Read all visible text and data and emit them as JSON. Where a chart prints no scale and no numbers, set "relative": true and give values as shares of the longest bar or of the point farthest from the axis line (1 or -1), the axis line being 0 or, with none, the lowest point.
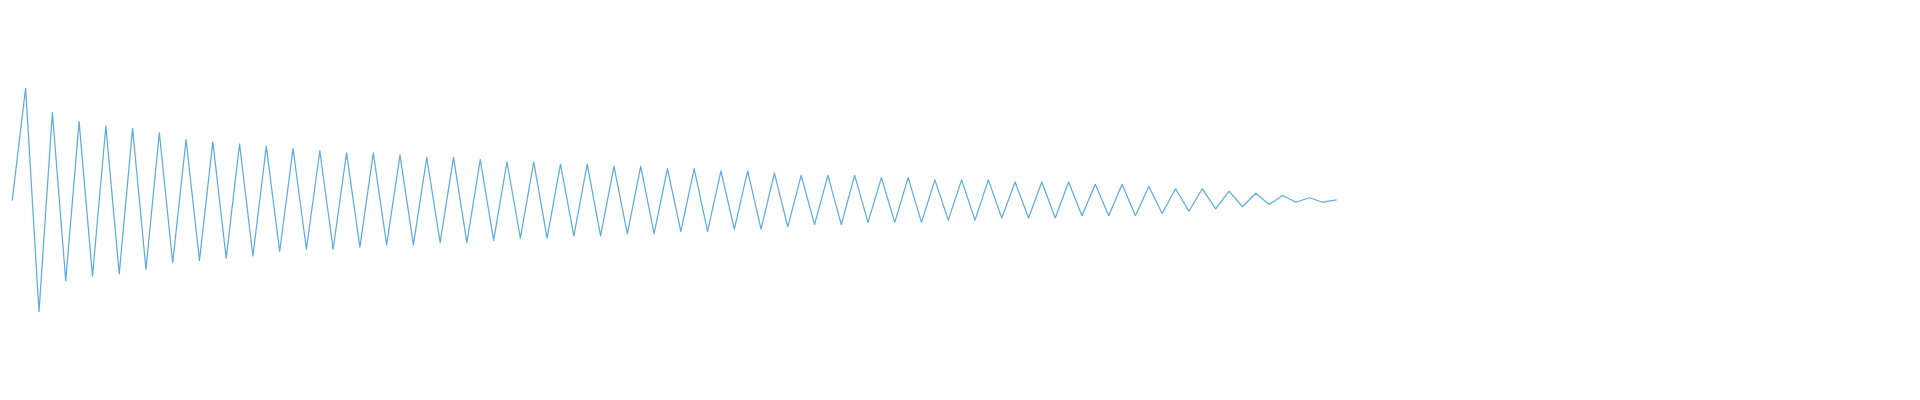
{
  "chart_data": {
    "type": "line",
    "relative": true,
    "categories": [
      null,
      null,
      null,
      null,
      null,
      null,
      null,
      null,
      null,
      null,
      null,
      null,
      null,
      null,
      null,
      null,
      null,
      null,
      null,
      null,
      null,
      null,
      null,
      null,
      null,
      null,
      null,
      null,
      null,
      null,
      null,
      null,
      null,
      null,
      null,
      null,
      null,
      null,
      null,
      null,
      null,
      null,
      null,
      null,
      null,
      null,
      null,
      null,
      null,
      null,
      null,
      null,
      null,
      null,
      null,
      null,
      null,
      null,
      null,
      null,
      null,
      null,
      null,
      null,
      null,
      null,
      null,
      null,
      null,
      null,
      null,
      null,
      null,
      null,
      null,
      null,
      null,
      null,
      null,
      null,
      null,
      null,
      null,
      null,
      null,
      null,
      null,
      null,
      null,
      null,
      null,
      null,
      null,
      null,
      null,
      null,
      null,
      null,
      null,
      null,
      null,
      null,
      null,
      null,
      null,
      null,
      null,
      null,
      null,
      null,
      null,
      null,
      null,
      null,
      null,
      null,
      null,
      null,
      null,
      null,
      null,
      null,
      null,
      null,
      null,
      null,
      null,
      null,
      null,
      null,
      null,
      null,
      null,
      null,
      null,
      null,
      null,
      null,
      null,
      null
    ],
    "series": [
      {
        "color": "#5dade2",
        "values": [
          0.5,
          1.0,
          0.0,
          0.89,
          0.14,
          0.85,
          0.16,
          0.83,
          0.17,
          0.82,
          0.19,
          0.8,
          0.22,
          0.77,
          0.23,
          0.76,
          0.24,
          0.75,
          0.25,
          0.74,
          0.27,
          0.73,
          0.28,
          0.72,
          0.28,
          0.71,
          0.29,
          0.71,
          0.3,
          0.7,
          0.3,
          0.69,
          0.31,
          0.69,
          0.31,
          0.68,
          0.32,
          0.67,
          0.33,
          0.67,
          0.33,
          0.66,
          0.34,
          0.66,
          0.34,
          0.65,
          0.35,
          0.65,
          0.35,
          0.64,
          0.36,
          0.64,
          0.36,
          0.63,
          0.37,
          0.63,
          0.37,
          0.62,
          0.38,
          0.61,
          0.39,
          0.61,
          0.39,
          0.61,
          0.4,
          0.6,
          0.4,
          0.6,
          0.4,
          0.59,
          0.41,
          0.59,
          0.41,
          0.59,
          0.42,
          0.58,
          0.42,
          0.58,
          0.42,
          0.58,
          0.43,
          0.57,
          0.43,
          0.57,
          0.43,
          0.56,
          0.44,
          0.55,
          0.45,
          0.55,
          0.46,
          0.54,
          0.47,
          0.53,
          0.48,
          0.52,
          0.49,
          0.51,
          0.49,
          0.5,
          null,
          null,
          null,
          null,
          null,
          null,
          null,
          null,
          null,
          null,
          null,
          null,
          null,
          null,
          null,
          null,
          null,
          null,
          null,
          null,
          null,
          null,
          null,
          null,
          null,
          null,
          null,
          null,
          null,
          null,
          null,
          null,
          null,
          null,
          null,
          null,
          null,
          null,
          null,
          null
        ]
      }
    ]
  }
}
